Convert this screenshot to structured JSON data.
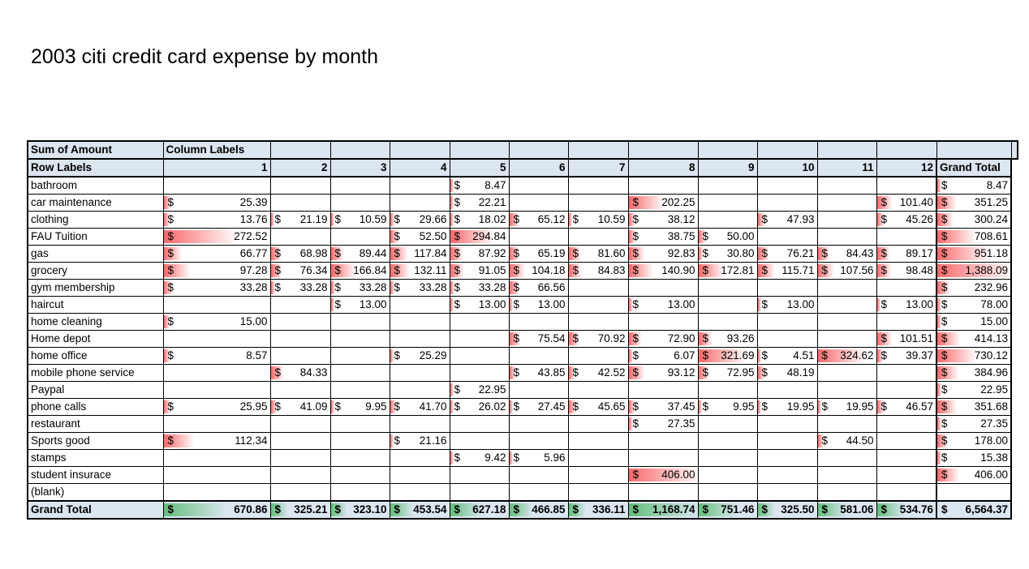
{
  "title": "2003 citi credit card expense by month",
  "header": {
    "sum_label": "Sum of Amount",
    "column_labels": "Column Labels",
    "row_labels": "Row Labels",
    "grand_total": "Grand Total",
    "months": [
      "1",
      "2",
      "3",
      "4",
      "5",
      "6",
      "7",
      "8",
      "9",
      "10",
      "11",
      "12"
    ]
  },
  "currency_symbol": "$",
  "rows": [
    {
      "label": "bathroom",
      "values": [
        null,
        null,
        null,
        null,
        "8.47",
        null,
        null,
        null,
        null,
        null,
        null,
        null
      ],
      "total": "8.47"
    },
    {
      "label": "car maintenance",
      "values": [
        "25.39",
        null,
        null,
        null,
        "22.21",
        null,
        null,
        "202.25",
        null,
        null,
        null,
        "101.40"
      ],
      "total": "351.25"
    },
    {
      "label": "clothing",
      "values": [
        "13.76",
        "21.19",
        "10.59",
        "29.66",
        "18.02",
        "65.12",
        "10.59",
        "38.12",
        null,
        "47.93",
        null,
        "45.26"
      ],
      "total": "300.24"
    },
    {
      "label": "FAU Tuition",
      "values": [
        "272.52",
        null,
        null,
        "52.50",
        "294.84",
        null,
        null,
        "38.75",
        "50.00",
        null,
        null,
        null
      ],
      "total": "708.61"
    },
    {
      "label": "gas",
      "values": [
        "66.77",
        "68.98",
        "89.44",
        "117.84",
        "87.92",
        "65.19",
        "81.60",
        "92.83",
        "30.80",
        "76.21",
        "84.43",
        "89.17"
      ],
      "total": "951.18"
    },
    {
      "label": "grocery",
      "values": [
        "97.28",
        "76.34",
        "166.84",
        "132.11",
        "91.05",
        "104.18",
        "84.83",
        "140.90",
        "172.81",
        "115.71",
        "107.56",
        "98.48"
      ],
      "total": "1,388.09"
    },
    {
      "label": "gym membership",
      "values": [
        "33.28",
        "33.28",
        "33.28",
        "33.28",
        "33.28",
        "66.56",
        null,
        null,
        null,
        null,
        null,
        null
      ],
      "total": "232.96"
    },
    {
      "label": "haircut",
      "values": [
        null,
        null,
        "13.00",
        null,
        "13.00",
        "13.00",
        null,
        "13.00",
        null,
        "13.00",
        null,
        "13.00"
      ],
      "total": "78.00"
    },
    {
      "label": "home cleaning",
      "values": [
        "15.00",
        null,
        null,
        null,
        null,
        null,
        null,
        null,
        null,
        null,
        null,
        null
      ],
      "total": "15.00"
    },
    {
      "label": "Home depot",
      "values": [
        null,
        null,
        null,
        null,
        null,
        "75.54",
        "70.92",
        "72.90",
        "93.26",
        null,
        null,
        "101.51"
      ],
      "total": "414.13"
    },
    {
      "label": "home office",
      "values": [
        "8.57",
        null,
        null,
        "25.29",
        null,
        null,
        null,
        "6.07",
        "321.69",
        "4.51",
        "324.62",
        "39.37"
      ],
      "total": "730.12"
    },
    {
      "label": "mobile phone service",
      "values": [
        null,
        "84.33",
        null,
        null,
        null,
        "43.85",
        "42.52",
        "93.12",
        "72.95",
        "48.19",
        null,
        null
      ],
      "total": "384.96"
    },
    {
      "label": "Paypal",
      "values": [
        null,
        null,
        null,
        null,
        "22.95",
        null,
        null,
        null,
        null,
        null,
        null,
        null
      ],
      "total": "22.95"
    },
    {
      "label": "phone calls",
      "values": [
        "25.95",
        "41.09",
        "9.95",
        "41.70",
        "26.02",
        "27.45",
        "45.65",
        "37.45",
        "9.95",
        "19.95",
        "19.95",
        "46.57"
      ],
      "total": "351.68"
    },
    {
      "label": "restaurant",
      "values": [
        null,
        null,
        null,
        null,
        null,
        null,
        null,
        "27.35",
        null,
        null,
        null,
        null
      ],
      "total": "27.35"
    },
    {
      "label": "Sports good",
      "values": [
        "112.34",
        null,
        null,
        "21.16",
        null,
        null,
        null,
        null,
        null,
        null,
        "44.50",
        null
      ],
      "total": "178.00"
    },
    {
      "label": "stamps",
      "values": [
        null,
        null,
        null,
        null,
        "9.42",
        "5.96",
        null,
        null,
        null,
        null,
        null,
        null
      ],
      "total": "15.38"
    },
    {
      "label": "student insurace",
      "values": [
        null,
        null,
        null,
        null,
        null,
        null,
        null,
        "406.00",
        null,
        null,
        null,
        null
      ],
      "total": "406.00"
    },
    {
      "label": "(blank)",
      "values": [
        null,
        null,
        null,
        null,
        null,
        null,
        null,
        null,
        null,
        null,
        null,
        null
      ],
      "total": null
    }
  ],
  "grand_total_row": {
    "label": "Grand Total",
    "values": [
      "670.86",
      "325.21",
      "323.10",
      "453.54",
      "627.18",
      "466.85",
      "336.11",
      "1,168.74",
      "751.46",
      "325.50",
      "581.06",
      "534.76"
    ],
    "total": "6,564.37"
  },
  "colors": {
    "header_fill": "#dce6f1",
    "databar_red": "#f8696b",
    "databar_green": "#63be7b"
  }
}
